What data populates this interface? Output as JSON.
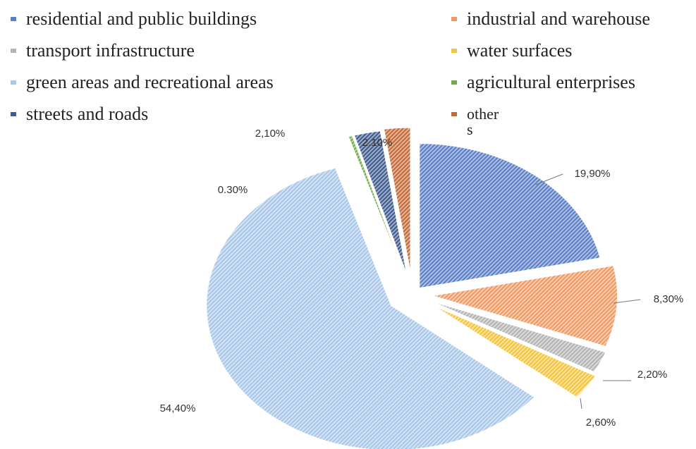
{
  "chart_data": {
    "type": "pie",
    "categories": [
      "residential and public buildings",
      "industrial and warehouse",
      "transport infrastructure",
      "water surfaces",
      "green areas and recreational areas",
      "agricultural enterprises",
      "streets and roads",
      "other\ns"
    ],
    "values": [
      19.9,
      8.3,
      2.2,
      2.6,
      54.4,
      0.3,
      2.1,
      2.1
    ],
    "value_labels": [
      "19,90%",
      "8,30%",
      "2,20%",
      "2,60%",
      "54,40%",
      "0.30%",
      "2,10%",
      "2.10%"
    ],
    "colors": [
      "#5b7fc6",
      "#ef9a62",
      "#b4b4b4",
      "#f4c53c",
      "#a9c7e9",
      "#70ad47",
      "#3f5c8e",
      "#c46a36"
    ]
  }
}
